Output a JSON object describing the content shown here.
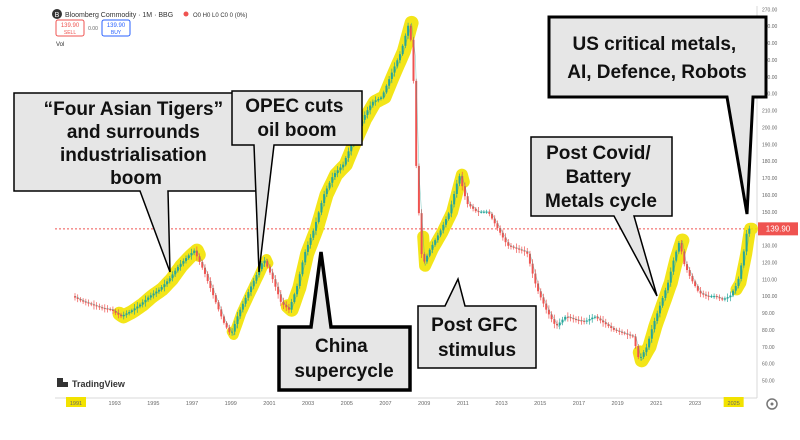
{
  "header": {
    "symbol_badge": "B",
    "instrument": "Bloomberg Commodity · 1M · BBG",
    "ohlc": "O0 H0 L0 C0 0 (0%)",
    "sell_price": "139.90",
    "sell_label": "SELL",
    "spread": "0.00",
    "buy_price": "139.90",
    "buy_label": "BUY",
    "volume_label": "Vol"
  },
  "watermark": {
    "brand": "TradingView"
  },
  "colors": {
    "highlight": "#f2e200",
    "candle_up": "#26a69a",
    "candle_down": "#ef5350",
    "price_tag": "#ef5350",
    "callout_fill": "#e6e6e6"
  },
  "callouts": [
    {
      "id": "asian-tigers",
      "lines": [
        "“Four Asian Tigers”",
        "and surrounds",
        "industrialisation",
        "boom"
      ]
    },
    {
      "id": "opec",
      "lines": [
        "OPEC cuts",
        "oil boom"
      ]
    },
    {
      "id": "china",
      "lines": [
        "China",
        "supercycle"
      ]
    },
    {
      "id": "gfc",
      "lines": [
        "Post GFC",
        "stimulus"
      ]
    },
    {
      "id": "covid",
      "lines": [
        "Post Covid/",
        "Battery",
        "Metals cycle"
      ]
    },
    {
      "id": "us",
      "lines": [
        "US critical metals,",
        "AI, Defence, Robots"
      ]
    }
  ],
  "chart_data": {
    "type": "line",
    "title": "Bloomberg Commodity",
    "xlabel": "",
    "ylabel": "",
    "x_ticks": [
      "1991",
      "1993",
      "1995",
      "1997",
      "1999",
      "2001",
      "2003",
      "2005",
      "2007",
      "2009",
      "2011",
      "2013",
      "2015",
      "2017",
      "2019",
      "2021",
      "2023",
      "2025"
    ],
    "y_ticks": [
      50,
      60,
      70,
      80,
      90,
      100,
      110,
      120,
      130,
      140,
      150,
      160,
      170,
      180,
      190,
      200,
      210,
      220,
      230,
      240,
      250,
      260,
      270
    ],
    "ylim": [
      42,
      272
    ],
    "last_price": "139.90",
    "grid": false,
    "series": [
      {
        "values": [
          {
            "x": 1991.0,
            "y": 100
          },
          {
            "x": 1991.5,
            "y": 97
          },
          {
            "x": 1992.0,
            "y": 95
          },
          {
            "x": 1992.5,
            "y": 93
          },
          {
            "x": 1993.0,
            "y": 92
          },
          {
            "x": 1993.5,
            "y": 88
          },
          {
            "x": 1994.0,
            "y": 91
          },
          {
            "x": 1994.5,
            "y": 95
          },
          {
            "x": 1995.0,
            "y": 100
          },
          {
            "x": 1995.5,
            "y": 104
          },
          {
            "x": 1996.0,
            "y": 110
          },
          {
            "x": 1996.5,
            "y": 118
          },
          {
            "x": 1997.0,
            "y": 124
          },
          {
            "x": 1997.3,
            "y": 127
          },
          {
            "x": 1997.8,
            "y": 115
          },
          {
            "x": 1998.3,
            "y": 100
          },
          {
            "x": 1998.8,
            "y": 85
          },
          {
            "x": 1999.2,
            "y": 77
          },
          {
            "x": 1999.6,
            "y": 90
          },
          {
            "x": 2000.0,
            "y": 100
          },
          {
            "x": 2000.5,
            "y": 112
          },
          {
            "x": 2000.9,
            "y": 122
          },
          {
            "x": 2001.3,
            "y": 112
          },
          {
            "x": 2001.8,
            "y": 96
          },
          {
            "x": 2002.2,
            "y": 92
          },
          {
            "x": 2002.6,
            "y": 105
          },
          {
            "x": 2003.0,
            "y": 125
          },
          {
            "x": 2003.5,
            "y": 140
          },
          {
            "x": 2004.0,
            "y": 160
          },
          {
            "x": 2004.5,
            "y": 172
          },
          {
            "x": 2005.0,
            "y": 178
          },
          {
            "x": 2005.5,
            "y": 192
          },
          {
            "x": 2006.0,
            "y": 205
          },
          {
            "x": 2006.5,
            "y": 215
          },
          {
            "x": 2007.0,
            "y": 218
          },
          {
            "x": 2007.5,
            "y": 232
          },
          {
            "x": 2008.0,
            "y": 245
          },
          {
            "x": 2008.4,
            "y": 262
          },
          {
            "x": 2008.6,
            "y": 242
          },
          {
            "x": 2008.8,
            "y": 170
          },
          {
            "x": 2009.1,
            "y": 118
          },
          {
            "x": 2009.5,
            "y": 128
          },
          {
            "x": 2010.0,
            "y": 138
          },
          {
            "x": 2010.5,
            "y": 150
          },
          {
            "x": 2011.0,
            "y": 172
          },
          {
            "x": 2011.4,
            "y": 155
          },
          {
            "x": 2011.9,
            "y": 150
          },
          {
            "x": 2012.5,
            "y": 150
          },
          {
            "x": 2013.0,
            "y": 140
          },
          {
            "x": 2013.5,
            "y": 130
          },
          {
            "x": 2014.0,
            "y": 128
          },
          {
            "x": 2014.5,
            "y": 126
          },
          {
            "x": 2015.0,
            "y": 105
          },
          {
            "x": 2015.5,
            "y": 92
          },
          {
            "x": 2016.0,
            "y": 82
          },
          {
            "x": 2016.5,
            "y": 88
          },
          {
            "x": 2017.0,
            "y": 86
          },
          {
            "x": 2017.5,
            "y": 85
          },
          {
            "x": 2018.0,
            "y": 88
          },
          {
            "x": 2018.5,
            "y": 84
          },
          {
            "x": 2019.0,
            "y": 80
          },
          {
            "x": 2019.5,
            "y": 78
          },
          {
            "x": 2020.0,
            "y": 76
          },
          {
            "x": 2020.3,
            "y": 62
          },
          {
            "x": 2020.7,
            "y": 70
          },
          {
            "x": 2021.0,
            "y": 82
          },
          {
            "x": 2021.4,
            "y": 95
          },
          {
            "x": 2021.8,
            "y": 108
          },
          {
            "x": 2022.1,
            "y": 122
          },
          {
            "x": 2022.4,
            "y": 133
          },
          {
            "x": 2022.6,
            "y": 120
          },
          {
            "x": 2023.0,
            "y": 110
          },
          {
            "x": 2023.4,
            "y": 102
          },
          {
            "x": 2023.8,
            "y": 100
          },
          {
            "x": 2024.2,
            "y": 100
          },
          {
            "x": 2024.6,
            "y": 98
          },
          {
            "x": 2025.0,
            "y": 100
          },
          {
            "x": 2025.4,
            "y": 108
          },
          {
            "x": 2025.7,
            "y": 125
          },
          {
            "x": 2025.9,
            "y": 140
          }
        ]
      }
    ]
  }
}
